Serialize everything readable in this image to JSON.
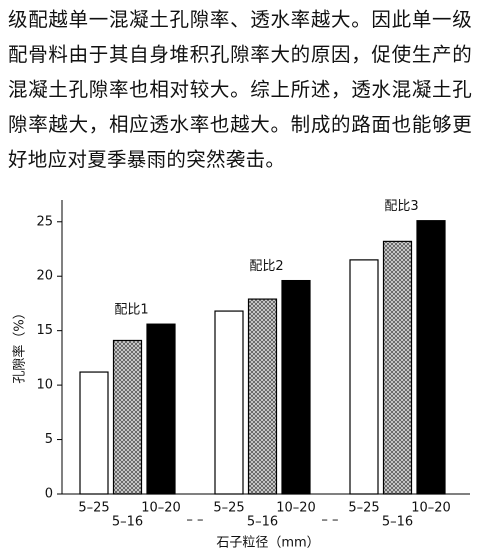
{
  "paragraph": "级配越单一混凝土孔隙率、透水率越大。因此单一级配骨料由于其自身堆积孔隙率大的原因，促使生产的混凝土孔隙率也相对较大。综上所述，透水混凝土孔隙率越大，相应透水率也越大。制成的路面也能够更好地应对夏季暴雨的突然袭击。",
  "chart_data": {
    "type": "grouped_bar",
    "x_label": "石子粒径（mm）",
    "y_label": "孔隙率（%）",
    "categories": [
      "配比1",
      "配比2",
      "配比3"
    ],
    "separator": "– –",
    "series": [
      {
        "name": "5–25",
        "color": "#ffffff",
        "values": [
          11.2,
          16.8,
          21.5
        ]
      },
      {
        "name": "5–16",
        "color": "#999999",
        "pattern": "crosshatch",
        "values": [
          14.1,
          17.9,
          23.2
        ]
      },
      {
        "name": "10–20",
        "color": "#000000",
        "values": [
          15.6,
          19.6,
          25.1
        ]
      }
    ],
    "ylim": [
      0,
      27
    ],
    "yticks": [
      0,
      5,
      10,
      15,
      20,
      25
    ]
  }
}
